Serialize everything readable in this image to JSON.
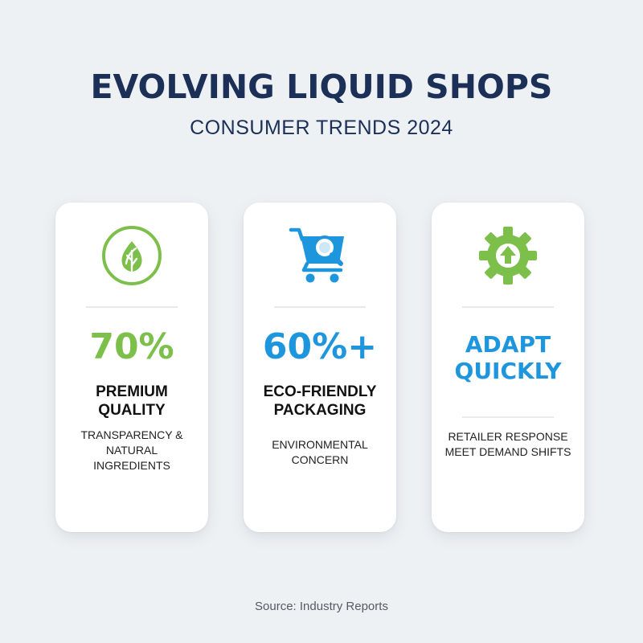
{
  "header": {
    "title": "EVOLVING LIQUID SHOPS",
    "subtitle": "CONSUMER TRENDS 2024"
  },
  "colors": {
    "title": "#1b2f57",
    "green": "#7cc04b",
    "blue": "#1e96de",
    "background": "#eef1f4"
  },
  "cards": [
    {
      "icon": "leaf-circle-icon",
      "stat": "70%",
      "label_lines": [
        "PREMIUM",
        "QUALITY"
      ],
      "desc_lines": [
        "TRANSPARENCY &",
        "NATURAL",
        "INGREDIENTS"
      ]
    },
    {
      "icon": "shopping-cart-search-icon",
      "stat": "60%+",
      "label_lines": [
        "ECO-FRIENDLY",
        "PACKAGING"
      ],
      "desc_lines": [
        "ENVIRONMENTAL",
        "CONCERN"
      ]
    },
    {
      "icon": "gear-arrow-up-icon",
      "stat_lines": [
        "ADAPT",
        "QUICKLY"
      ],
      "desc_lines": [
        "RETAILER RESPONSE",
        "MEET DEMAND SHIFTS"
      ]
    }
  ],
  "footer": {
    "source": "Source: Industry Reports"
  }
}
